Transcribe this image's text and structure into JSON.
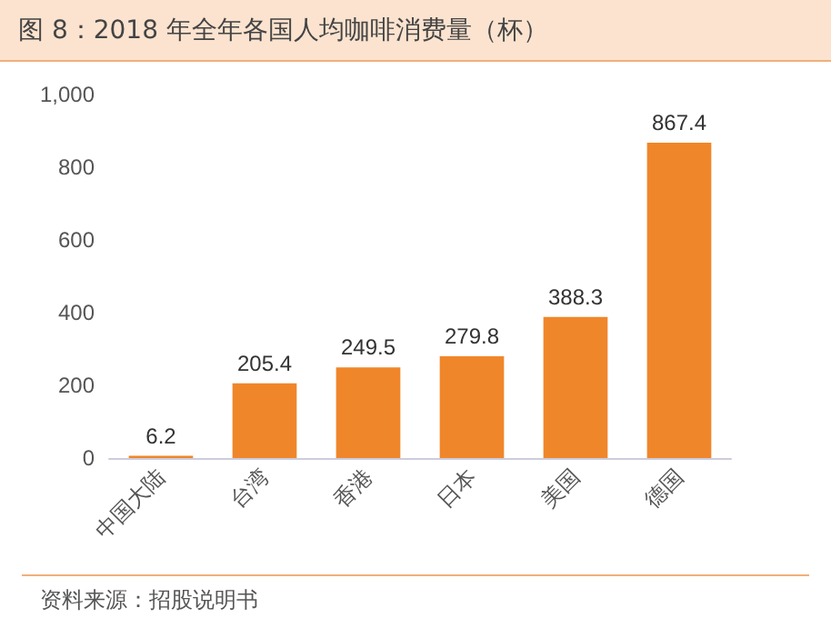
{
  "chart_data": {
    "type": "bar",
    "title": "图 8：2018 年全年各国人均咖啡消费量（杯）",
    "categories": [
      "中国大陆",
      "台湾",
      "香港",
      "日本",
      "美国",
      "德国"
    ],
    "values": [
      6.2,
      205.4,
      249.5,
      279.8,
      388.3,
      867.4
    ],
    "color": "#f0862a",
    "ylim": [
      0,
      1000
    ],
    "yticks": [
      0,
      200,
      400,
      600,
      800,
      {
        "value": 1000,
        "label": "1,000"
      }
    ],
    "grid": false,
    "data_labels": true,
    "annotations": [
      "资料来源：招股说明书"
    ]
  }
}
